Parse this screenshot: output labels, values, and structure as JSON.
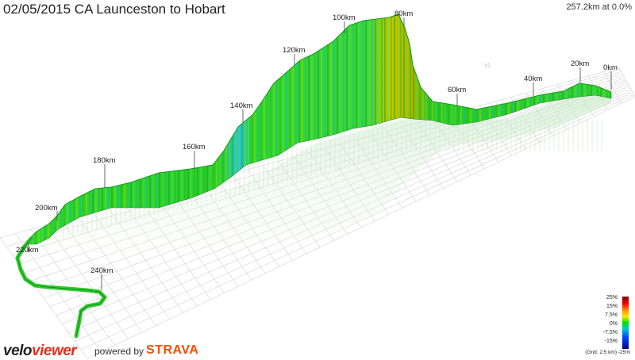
{
  "header": {
    "title": "02/05/2015 CA Launceston to Hobart",
    "status": "257.2km at 0.0%"
  },
  "km_markers": [
    "0km",
    "20km",
    "40km",
    "60km",
    "80km",
    "100km",
    "120km",
    "140km",
    "160km",
    "180km",
    "200km",
    "220km",
    "240km"
  ],
  "legend": {
    "labels": [
      "25%",
      "15%",
      "7.5%",
      "0%",
      "-7.5%",
      "-15%",
      "-25%"
    ],
    "grid_note": "(Grid: 2.5 km) -25%",
    "colors": [
      "#7a0000",
      "#ff0000",
      "#ff8c00",
      "#ffe600",
      "#00e000",
      "#00c8c8",
      "#0050ff",
      "#00008a"
    ]
  },
  "brand": {
    "velo": "velo",
    "viewer": "viewer",
    "powered": "powered by",
    "strava": "STRAVA"
  },
  "colors": {
    "route_green": "#2ed42e",
    "route_dark": "#1f8f1f",
    "wall_cyan": "#22c8e8",
    "wall_yellow": "#c8c800",
    "grid": "#d2d2d2",
    "strava": "#fc4c02",
    "viewer_red": "#e0301e"
  }
}
